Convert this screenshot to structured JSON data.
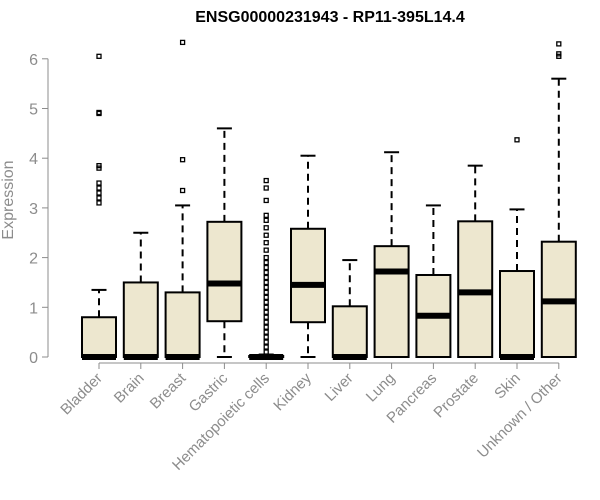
{
  "chart_data": {
    "type": "boxplot",
    "title": "ENSG00000231943 - RP11-395L14.4",
    "ylabel": "Expression",
    "xlabel": "",
    "ylim": [
      0,
      6.3
    ],
    "yticks": [
      0,
      1,
      2,
      3,
      4,
      5,
      6
    ],
    "box_color": "#ede7cf",
    "categories": [
      "Bladder",
      "Brain",
      "Breast",
      "Gastric",
      "Hematopoietic cells",
      "Kidney",
      "Liver",
      "Lung",
      "Pancreas",
      "Prostate",
      "Skin",
      "Unknown / Other"
    ],
    "boxes": [
      {
        "min": 0,
        "q1": 0,
        "median": 0,
        "q3": 0.8,
        "max": 1.35,
        "outliers": [
          3.1,
          3.2,
          3.3,
          3.4,
          3.5,
          3.8,
          3.85,
          4.9,
          4.92,
          6.05
        ]
      },
      {
        "min": 0,
        "q1": 0,
        "median": 0,
        "q3": 1.5,
        "max": 2.5,
        "outliers": []
      },
      {
        "min": 0,
        "q1": 0,
        "median": 0,
        "q3": 1.3,
        "max": 3.05,
        "outliers": [
          3.35,
          3.97,
          6.33
        ]
      },
      {
        "min": 0,
        "q1": 0.72,
        "median": 1.48,
        "q3": 2.72,
        "max": 4.6,
        "outliers": []
      },
      {
        "min": 0,
        "q1": 0,
        "median": 0,
        "q3": 0.02,
        "max": 0.05,
        "outliers": [
          0.1,
          0.2,
          0.3,
          0.4,
          0.5,
          0.6,
          0.7,
          0.8,
          0.9,
          1.0,
          1.1,
          1.2,
          1.3,
          1.4,
          1.5,
          1.6,
          1.7,
          1.8,
          1.9,
          2.0,
          2.15,
          2.3,
          2.45,
          2.6,
          2.75,
          2.85,
          3.15,
          3.4,
          3.55
        ]
      },
      {
        "min": 0,
        "q1": 0.7,
        "median": 1.45,
        "q3": 2.58,
        "max": 4.05,
        "outliers": []
      },
      {
        "min": 0,
        "q1": 0,
        "median": 0,
        "q3": 1.02,
        "max": 1.95,
        "outliers": []
      },
      {
        "min": 0,
        "q1": 0,
        "median": 1.72,
        "q3": 2.23,
        "max": 4.12,
        "outliers": []
      },
      {
        "min": 0,
        "q1": 0,
        "median": 0.83,
        "q3": 1.65,
        "max": 3.05,
        "outliers": []
      },
      {
        "min": 0,
        "q1": 0,
        "median": 1.3,
        "q3": 2.73,
        "max": 3.85,
        "outliers": []
      },
      {
        "min": 0,
        "q1": 0,
        "median": 0,
        "q3": 1.73,
        "max": 2.97,
        "outliers": [
          4.37
        ]
      },
      {
        "min": 0,
        "q1": 0,
        "median": 1.12,
        "q3": 2.32,
        "max": 5.6,
        "outliers": [
          6.05,
          6.1,
          6.3
        ]
      }
    ]
  }
}
